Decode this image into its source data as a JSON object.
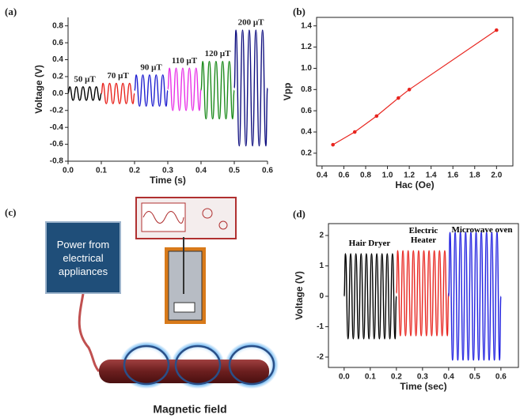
{
  "chart_data": [
    {
      "type": "line",
      "label": "(a)",
      "xlabel": "Time (s)",
      "ylabel": "Voltage (V)",
      "xlim": [
        0,
        0.6
      ],
      "xticks": [
        {
          "value": 0,
          "label": "0.0"
        },
        0.1,
        0.2,
        0.3,
        0.4,
        0.5,
        0.6
      ],
      "ylim": [
        -0.8,
        0.9
      ],
      "yticks": [
        -0.8,
        -0.6,
        -0.4,
        -0.2,
        {
          "value": 0,
          "label": "0.0"
        },
        0.2,
        0.4,
        0.6,
        0.8
      ],
      "series": [
        {
          "name": "50 μT",
          "color": "#000000",
          "x": [
            0,
            0.005,
            0.015,
            0.025,
            0.035,
            0.045,
            0.055,
            0.065,
            0.075,
            0.085,
            0.095,
            0.1
          ],
          "values": [
            0,
            0.08,
            -0.08,
            0.08,
            -0.08,
            0.08,
            -0.08,
            0.08,
            -0.08,
            0.08,
            -0.08,
            0
          ]
        },
        {
          "name": "70 μT",
          "color": "#e8251f",
          "x": [
            0.1,
            0.105,
            0.115,
            0.125,
            0.135,
            0.145,
            0.155,
            0.165,
            0.175,
            0.185,
            0.195,
            0.2
          ],
          "values": [
            0,
            0.12,
            -0.12,
            0.12,
            -0.12,
            0.12,
            -0.12,
            0.12,
            -0.12,
            0.12,
            -0.12,
            0
          ]
        },
        {
          "name": "90 μT",
          "color": "#1f1fd0",
          "x": [
            0.2,
            0.205,
            0.215,
            0.225,
            0.235,
            0.245,
            0.255,
            0.265,
            0.275,
            0.285,
            0.295,
            0.3
          ],
          "values": [
            0.035,
            0.22,
            -0.15,
            0.22,
            -0.15,
            0.22,
            -0.15,
            0.22,
            -0.15,
            0.22,
            -0.15,
            0.035
          ]
        },
        {
          "name": "110 μT",
          "color": "#e830e8",
          "x": [
            0.3,
            0.305,
            0.315,
            0.325,
            0.335,
            0.345,
            0.355,
            0.365,
            0.375,
            0.385,
            0.395,
            0.4
          ],
          "values": [
            0.05,
            0.3,
            -0.2,
            0.3,
            -0.2,
            0.3,
            -0.2,
            0.3,
            -0.2,
            0.3,
            -0.2,
            0.05
          ]
        },
        {
          "name": "120 μT",
          "color": "#1a8a1a",
          "x": [
            0.4,
            0.405,
            0.415,
            0.425,
            0.435,
            0.445,
            0.455,
            0.465,
            0.475,
            0.485,
            0.495,
            0.5
          ],
          "values": [
            0.04,
            0.38,
            -0.3,
            0.38,
            -0.3,
            0.38,
            -0.3,
            0.38,
            -0.3,
            0.38,
            -0.3,
            0.04
          ]
        },
        {
          "name": "200 μT",
          "color": "#101080",
          "x": [
            0.5,
            0.505,
            0.515,
            0.525,
            0.535,
            0.545,
            0.555,
            0.565,
            0.575,
            0.585,
            0.595,
            0.6
          ],
          "values": [
            0.065,
            0.75,
            -0.62,
            0.75,
            -0.62,
            0.75,
            -0.62,
            0.75,
            -0.62,
            0.75,
            -0.62,
            0.065
          ]
        }
      ]
    },
    {
      "type": "line",
      "label": "(b)",
      "xlabel": "Hac (Oe)",
      "ylabel": "Vpp",
      "markers": true,
      "xlim": [
        0.35,
        2.15
      ],
      "xticks": [
        0.4,
        0.6,
        0.8,
        {
          "value": 1,
          "label": "1.0"
        },
        1.2,
        1.4,
        1.6,
        1.8,
        {
          "value": 2,
          "label": "2.0"
        }
      ],
      "ylim": [
        0.08,
        1.48
      ],
      "yticks": [
        0.2,
        0.4,
        0.6,
        0.8,
        {
          "value": 1,
          "label": "1.0"
        },
        1.2,
        1.4
      ],
      "series": [
        {
          "color": "#e8251f",
          "x": [
            0.5,
            0.7,
            0.9,
            1.1,
            1.2,
            2.0
          ],
          "values": [
            0.28,
            0.4,
            0.55,
            0.72,
            0.8,
            1.36
          ]
        }
      ]
    },
    {
      "type": "line",
      "label": "(d)",
      "xlabel": "Time (sec)",
      "ylabel": "Voltage (V)",
      "xlim": [
        -0.06,
        0.667
      ],
      "xticks": [
        {
          "value": 0,
          "label": "0.0"
        },
        0.1,
        0.2,
        0.3,
        0.4,
        0.5,
        0.6
      ],
      "ylim": [
        -2.34,
        2.39
      ],
      "yticks": [
        -2,
        -1,
        0,
        1,
        2
      ],
      "series": [
        {
          "name": "Hair Dryer",
          "color": "#000000",
          "x": [
            0,
            0.005,
            0.015,
            0.025,
            0.035,
            0.045,
            0.055,
            0.065,
            0.075,
            0.085,
            0.095,
            0.105,
            0.115,
            0.125,
            0.135,
            0.145,
            0.155,
            0.165,
            0.175,
            0.185,
            0.195,
            0.2
          ],
          "values": [
            0,
            1.4,
            -1.4,
            1.4,
            -1.4,
            1.4,
            -1.4,
            1.4,
            -1.4,
            1.4,
            -1.4,
            1.4,
            -1.4,
            1.4,
            -1.4,
            1.4,
            -1.4,
            1.4,
            -1.4,
            1.4,
            -1.4,
            0
          ]
        },
        {
          "name": "Electric Heater",
          "color": "#e8251f",
          "x": [
            0.2,
            0.205,
            0.215,
            0.225,
            0.235,
            0.245,
            0.255,
            0.265,
            0.275,
            0.285,
            0.295,
            0.305,
            0.315,
            0.325,
            0.335,
            0.345,
            0.355,
            0.365,
            0.375,
            0.385,
            0.395,
            0.4
          ],
          "values": [
            0.1,
            1.5,
            -1.3,
            1.5,
            -1.3,
            1.5,
            -1.3,
            1.5,
            -1.3,
            1.5,
            -1.3,
            1.5,
            -1.3,
            1.5,
            -1.3,
            1.5,
            -1.3,
            1.5,
            -1.3,
            1.5,
            -1.3,
            0.1
          ]
        },
        {
          "name": "Microwave oven",
          "color": "#2020e0",
          "x": [
            0.4,
            0.405,
            0.415,
            0.425,
            0.435,
            0.445,
            0.455,
            0.465,
            0.475,
            0.485,
            0.495,
            0.505,
            0.515,
            0.525,
            0.535,
            0.545,
            0.555,
            0.565,
            0.575,
            0.585,
            0.595,
            0.6
          ],
          "values": [
            0,
            2.1,
            -2.1,
            2.1,
            -2.1,
            2.1,
            -2.1,
            2.1,
            -2.1,
            2.1,
            -2.1,
            2.1,
            -2.1,
            2.1,
            -2.1,
            2.1,
            -2.1,
            2.1,
            -2.1,
            2.1,
            -2.1,
            0
          ]
        }
      ]
    }
  ],
  "diagram": {
    "label": "(c)",
    "power_box": "Power from electrical appliances",
    "field_label": "Magnetic field"
  }
}
